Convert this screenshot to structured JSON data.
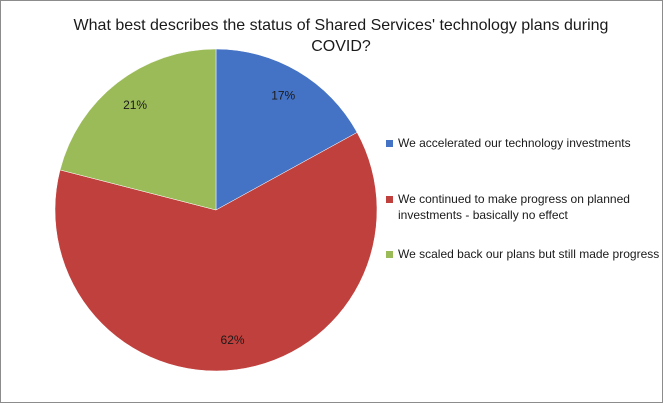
{
  "chart_data": {
    "type": "pie",
    "title": "What best describes the status of Shared Services' technology plans during COVID?",
    "legend_position": "right",
    "slices": [
      {
        "name": "We accelerated our technology investments",
        "value": 17,
        "label": "17%",
        "color": "#4472c4"
      },
      {
        "name": "We continued to make progress on planned investments - basically no effect",
        "value": 62,
        "label": "62%",
        "color": "#c0403d"
      },
      {
        "name": "We scaled back our plans but still made progress",
        "value": 21,
        "label": "21%",
        "color": "#9bbb59"
      }
    ]
  }
}
